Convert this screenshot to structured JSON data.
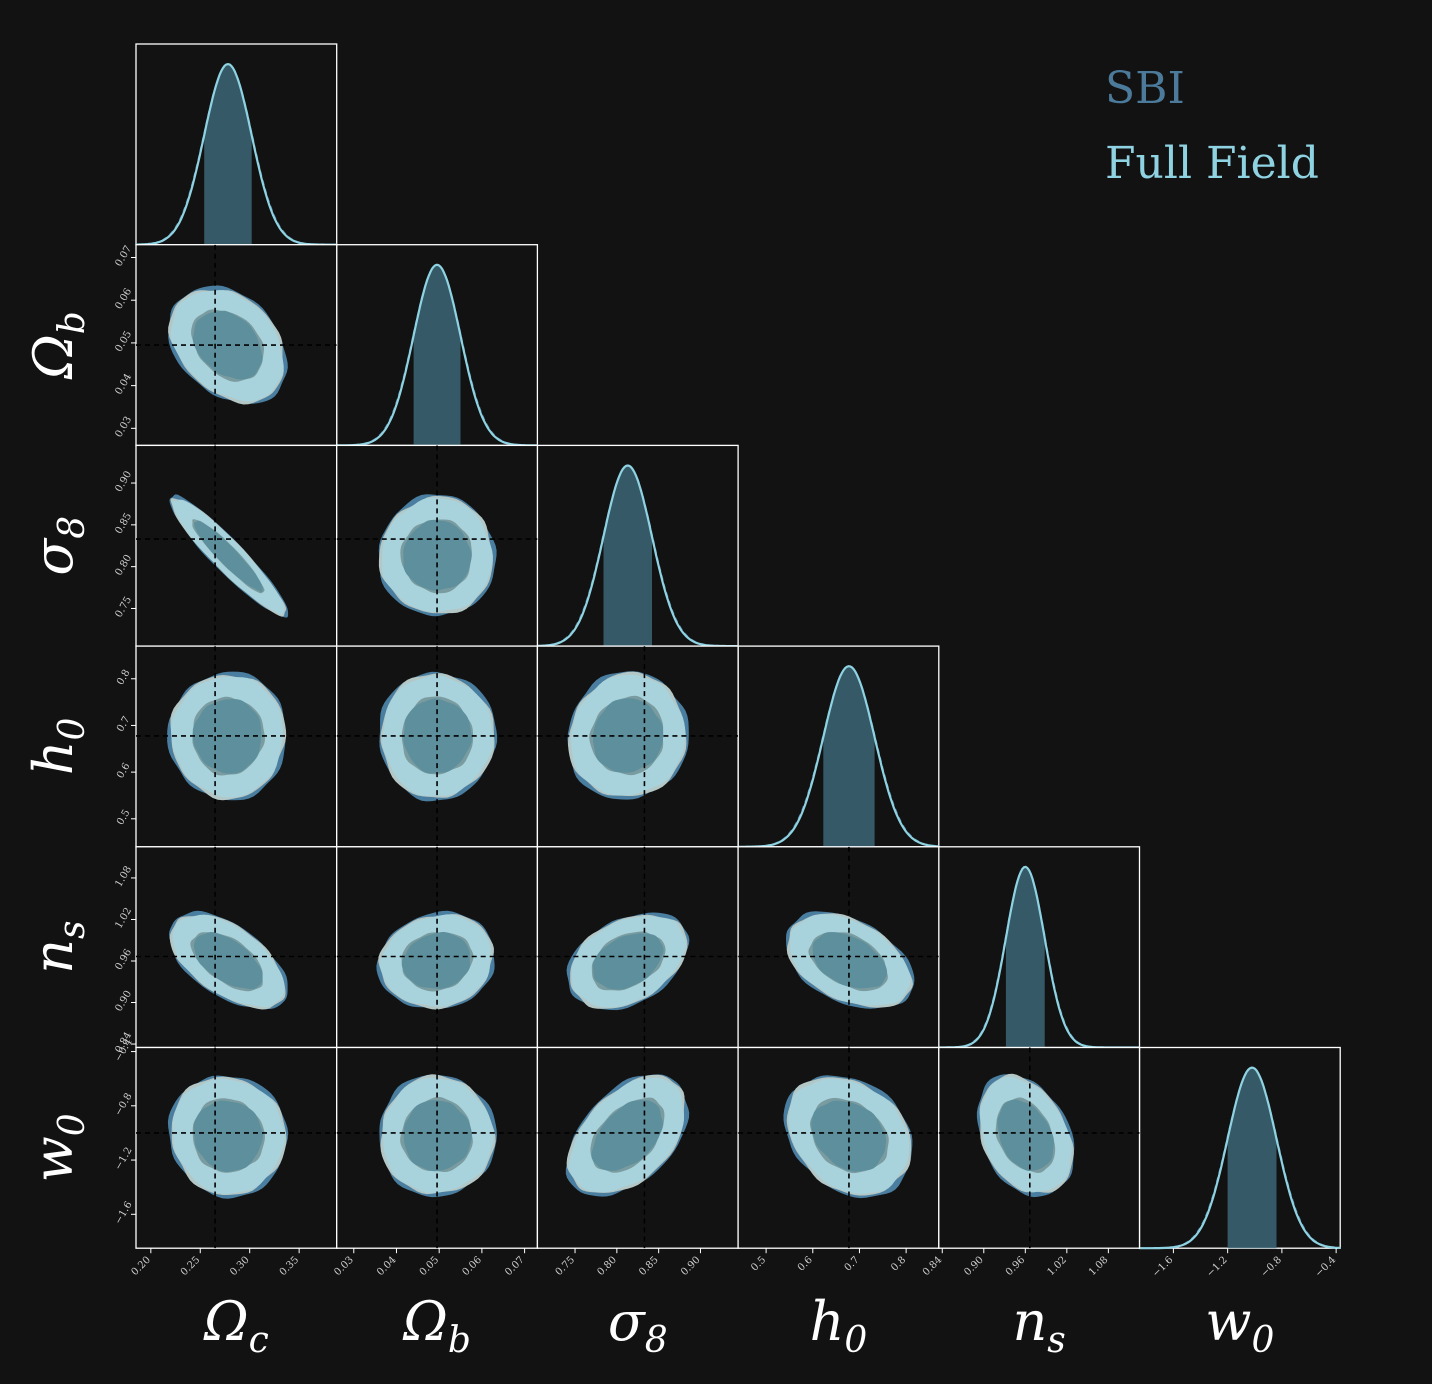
{
  "chart_data": {
    "type": "corner",
    "parameters": [
      {
        "key": "omega_c",
        "symbol": "Ω",
        "sub": "c",
        "truth": 0.265,
        "range": [
          0.185,
          0.388
        ],
        "ticks": [
          "0.20",
          "0.25",
          "0.30",
          "0.35"
        ],
        "mean": 0.278,
        "sigma": 0.024
      },
      {
        "key": "omega_b",
        "symbol": "Ω",
        "sub": "b",
        "truth": 0.0495,
        "range": [
          0.026,
          0.073
        ],
        "ticks": [
          "0.03",
          "0.04",
          "0.05",
          "0.06",
          "0.07"
        ],
        "mean": 0.0495,
        "sigma": 0.0055
      },
      {
        "key": "sigma_8",
        "symbol": "σ",
        "sub": "8",
        "truth": 0.833,
        "range": [
          0.705,
          0.945
        ],
        "ticks": [
          "0.75",
          "0.80",
          "0.85",
          "0.90"
        ],
        "mean": 0.813,
        "sigma": 0.029
      },
      {
        "key": "h_0",
        "symbol": "h",
        "sub": "0",
        "truth": 0.6775,
        "range": [
          0.44,
          0.87
        ],
        "ticks": [
          "0.5",
          "0.6",
          "0.7",
          "0.8"
        ],
        "mean": 0.6775,
        "sigma": 0.055
      },
      {
        "key": "n_s",
        "symbol": "n",
        "sub": "s",
        "truth": 0.9665,
        "range": [
          0.835,
          1.125
        ],
        "ticks": [
          "0.84",
          "0.90",
          "0.96",
          "1.02",
          "1.08"
        ],
        "mean": 0.96,
        "sigma": 0.028
      },
      {
        "key": "w_0",
        "symbol": "w",
        "sub": "0",
        "truth": -1.0,
        "range": [
          -1.85,
          -0.37
        ],
        "ticks": [
          "−1.6",
          "−1.2",
          "−0.8",
          "−0.4"
        ],
        "mean": -1.02,
        "sigma": 0.18
      }
    ],
    "correlations": [
      {
        "pair": [
          "omega_c",
          "omega_b"
        ],
        "rho": -0.3
      },
      {
        "pair": [
          "omega_c",
          "sigma_8"
        ],
        "rho": -0.93
      },
      {
        "pair": [
          "omega_c",
          "h_0"
        ],
        "rho": 0.0
      },
      {
        "pair": [
          "omega_b",
          "sigma_8"
        ],
        "rho": 0.0
      },
      {
        "pair": [
          "omega_b",
          "h_0"
        ],
        "rho": 0.0
      },
      {
        "pair": [
          "sigma_8",
          "h_0"
        ],
        "rho": 0.05
      },
      {
        "pair": [
          "omega_c",
          "n_s"
        ],
        "rho": -0.55
      },
      {
        "pair": [
          "omega_b",
          "n_s"
        ],
        "rho": 0.1
      },
      {
        "pair": [
          "sigma_8",
          "n_s"
        ],
        "rho": 0.35
      },
      {
        "pair": [
          "h_0",
          "n_s"
        ],
        "rho": -0.4
      },
      {
        "pair": [
          "omega_c",
          "w_0"
        ],
        "rho": -0.05
      },
      {
        "pair": [
          "omega_b",
          "w_0"
        ],
        "rho": 0.0
      },
      {
        "pair": [
          "sigma_8",
          "w_0"
        ],
        "rho": 0.45
      },
      {
        "pair": [
          "h_0",
          "w_0"
        ],
        "rho": -0.25
      },
      {
        "pair": [
          "n_s",
          "w_0"
        ],
        "rho": -0.3
      }
    ],
    "series": [
      {
        "name": "SBI",
        "color": "#4c7a9a",
        "inner_color": "#5a93a8",
        "outer_color": "#4a7ea0"
      },
      {
        "name": "Full Field",
        "color": "#8fd3e3",
        "inner_color": "#5e8f9c",
        "outer_color": "#a9d3dc"
      }
    ],
    "truth_line_style": "black dashed",
    "legend_position": "top-right"
  }
}
